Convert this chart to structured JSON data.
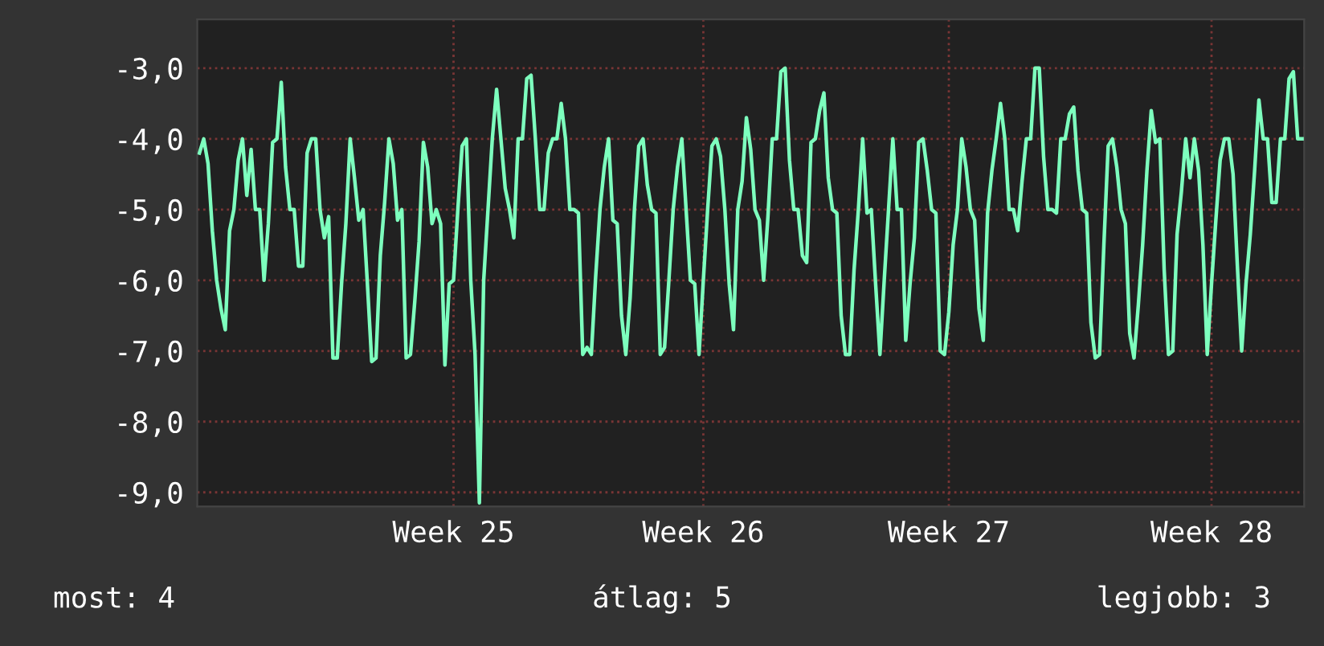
{
  "chart_data": {
    "type": "line",
    "ylim": [
      -9.2,
      -2.31
    ],
    "categories": [
      null,
      null,
      null,
      null,
      null,
      null,
      null,
      null,
      null,
      null,
      null,
      null,
      null,
      null,
      null,
      null,
      null,
      null,
      null,
      null,
      null,
      null,
      null,
      null,
      null,
      null,
      null,
      null,
      null,
      null,
      null,
      null,
      null,
      null,
      null,
      null,
      null,
      null,
      null,
      null,
      null,
      null,
      null,
      null,
      null,
      null,
      null,
      null,
      null,
      null,
      null,
      null,
      null,
      null,
      null,
      null,
      null,
      null,
      null,
      "Week 25",
      null,
      null,
      null,
      null,
      null,
      null,
      null,
      null,
      null,
      null,
      null,
      null,
      null,
      null,
      null,
      null,
      null,
      null,
      null,
      null,
      null,
      null,
      null,
      null,
      null,
      null,
      null,
      null,
      null,
      null,
      null,
      null,
      null,
      null,
      null,
      null,
      null,
      null,
      null,
      null,
      null,
      null,
      null,
      null,
      null,
      null,
      null,
      null,
      null,
      null,
      null,
      null,
      null,
      null,
      null,
      null,
      null,
      "Week 26",
      null,
      null,
      null,
      null,
      null,
      null,
      null,
      null,
      null,
      null,
      null,
      null,
      null,
      null,
      null,
      null,
      null,
      null,
      null,
      null,
      null,
      null,
      null,
      null,
      null,
      null,
      null,
      null,
      null,
      null,
      null,
      null,
      null,
      null,
      null,
      null,
      null,
      null,
      null,
      null,
      null,
      null,
      null,
      null,
      null,
      null,
      null,
      null,
      null,
      null,
      null,
      null,
      null,
      null,
      null,
      null,
      "Week 27",
      null,
      null,
      null,
      null,
      null,
      null,
      null,
      null,
      null,
      null,
      null,
      null,
      null,
      null,
      null,
      null,
      null,
      null,
      null,
      null,
      null,
      null,
      null,
      null,
      null,
      null,
      null,
      null,
      null,
      null,
      null,
      null,
      null,
      null,
      null,
      null,
      null,
      null,
      null,
      null,
      null,
      null,
      null,
      null,
      null,
      null,
      null,
      null,
      null,
      null,
      null,
      null,
      null,
      null,
      null,
      null,
      null,
      null,
      null,
      null,
      "Week 28",
      null,
      null,
      null,
      null,
      null,
      null,
      null,
      null,
      null,
      null,
      null,
      null,
      null,
      null,
      null,
      null,
      null,
      null,
      null,
      null,
      null
    ],
    "yticks": [
      {
        "value": -3,
        "label": "-3,0"
      },
      {
        "value": -4,
        "label": "-4,0"
      },
      {
        "value": -5,
        "label": "-5,0"
      },
      {
        "value": -6,
        "label": "-6,0"
      },
      {
        "value": -7,
        "label": "-7,0"
      },
      {
        "value": -8,
        "label": "-8,0"
      },
      {
        "value": -9,
        "label": "-9,0"
      }
    ],
    "grid": true,
    "marker": "none",
    "line_style": "solid",
    "annotations": [
      "most: 4",
      "átlag: 5",
      "legjobb: 3"
    ],
    "series": [
      {
        "color": "#7dffbe",
        "values": [
          -4.2,
          -4.0,
          -4.35,
          -5.3,
          -6.0,
          -6.4,
          -6.7,
          -5.3,
          -5.0,
          -4.3,
          -4.0,
          -4.8,
          -4.15,
          -5.0,
          -5.0,
          -6.0,
          -5.2,
          -4.05,
          -4.0,
          -3.2,
          -4.4,
          -5.0,
          -5.0,
          -5.8,
          -5.8,
          -4.2,
          -4.0,
          -4.0,
          -5.0,
          -5.4,
          -5.1,
          -7.1,
          -7.1,
          -6.05,
          -5.2,
          -4.0,
          -4.55,
          -5.15,
          -5.0,
          -6.05,
          -7.15,
          -7.1,
          -5.65,
          -4.9,
          -4.0,
          -4.35,
          -5.15,
          -5.0,
          -7.1,
          -7.05,
          -6.3,
          -5.45,
          -4.05,
          -4.4,
          -5.2,
          -5.0,
          -5.2,
          -7.2,
          -6.05,
          -6.0,
          -5.0,
          -4.1,
          -4.0,
          -6.0,
          -7.05,
          -9.15,
          -6.0,
          -5.0,
          -4.0,
          -3.3,
          -4.0,
          -4.7,
          -5.0,
          -5.4,
          -4.0,
          -4.0,
          -3.15,
          -3.1,
          -4.0,
          -5.0,
          -5.0,
          -4.2,
          -4.0,
          -4.0,
          -3.5,
          -4.0,
          -5.0,
          -5.0,
          -5.05,
          -7.05,
          -6.95,
          -7.05,
          -5.95,
          -5.0,
          -4.4,
          -4.0,
          -5.15,
          -5.2,
          -6.5,
          -7.05,
          -6.25,
          -5.0,
          -4.1,
          -4.0,
          -4.65,
          -5.0,
          -5.05,
          -7.05,
          -6.95,
          -6.0,
          -5.0,
          -4.4,
          -4.0,
          -5.0,
          -6.0,
          -6.05,
          -7.05,
          -6.0,
          -5.0,
          -4.1,
          -4.0,
          -4.25,
          -5.0,
          -6.05,
          -6.7,
          -5.0,
          -4.6,
          -3.7,
          -4.15,
          -5.0,
          -5.15,
          -6.0,
          -5.1,
          -4.0,
          -4.0,
          -3.05,
          -3.0,
          -4.3,
          -5.0,
          -5.0,
          -5.65,
          -5.75,
          -4.05,
          -4.0,
          -3.6,
          -3.35,
          -4.55,
          -5.0,
          -5.05,
          -6.5,
          -7.05,
          -7.05,
          -5.85,
          -5.0,
          -4.0,
          -5.05,
          -5.0,
          -6.05,
          -7.05,
          -6.0,
          -5.0,
          -4.0,
          -5.0,
          -5.0,
          -6.85,
          -6.05,
          -5.4,
          -4.05,
          -4.0,
          -4.45,
          -5.0,
          -5.05,
          -7.0,
          -7.05,
          -6.45,
          -5.5,
          -5.0,
          -4.0,
          -4.4,
          -5.0,
          -5.15,
          -6.4,
          -6.85,
          -5.05,
          -4.45,
          -4.0,
          -3.5,
          -4.0,
          -5.0,
          -5.0,
          -5.3,
          -4.6,
          -4.0,
          -4.0,
          -3.0,
          -3.0,
          -4.25,
          -5.0,
          -5.0,
          -5.05,
          -4.0,
          -4.0,
          -3.65,
          -3.55,
          -4.45,
          -5.0,
          -5.05,
          -6.6,
          -7.1,
          -7.05,
          -5.5,
          -4.1,
          -4.0,
          -4.4,
          -5.0,
          -5.2,
          -6.75,
          -7.1,
          -6.35,
          -5.5,
          -4.45,
          -3.6,
          -4.05,
          -4.0,
          -5.85,
          -7.05,
          -7.0,
          -5.35,
          -4.75,
          -4.0,
          -4.55,
          -4.0,
          -4.45,
          -5.5,
          -7.05,
          -6.05,
          -5.15,
          -4.3,
          -4.0,
          -4.0,
          -4.5,
          -5.8,
          -7.0,
          -6.05,
          -5.35,
          -4.45,
          -3.45,
          -4.0,
          -4.0,
          -4.9,
          -4.9,
          -4.0,
          -4.0,
          -3.15,
          -3.05,
          -4.0,
          -4.0
        ]
      }
    ]
  }
}
